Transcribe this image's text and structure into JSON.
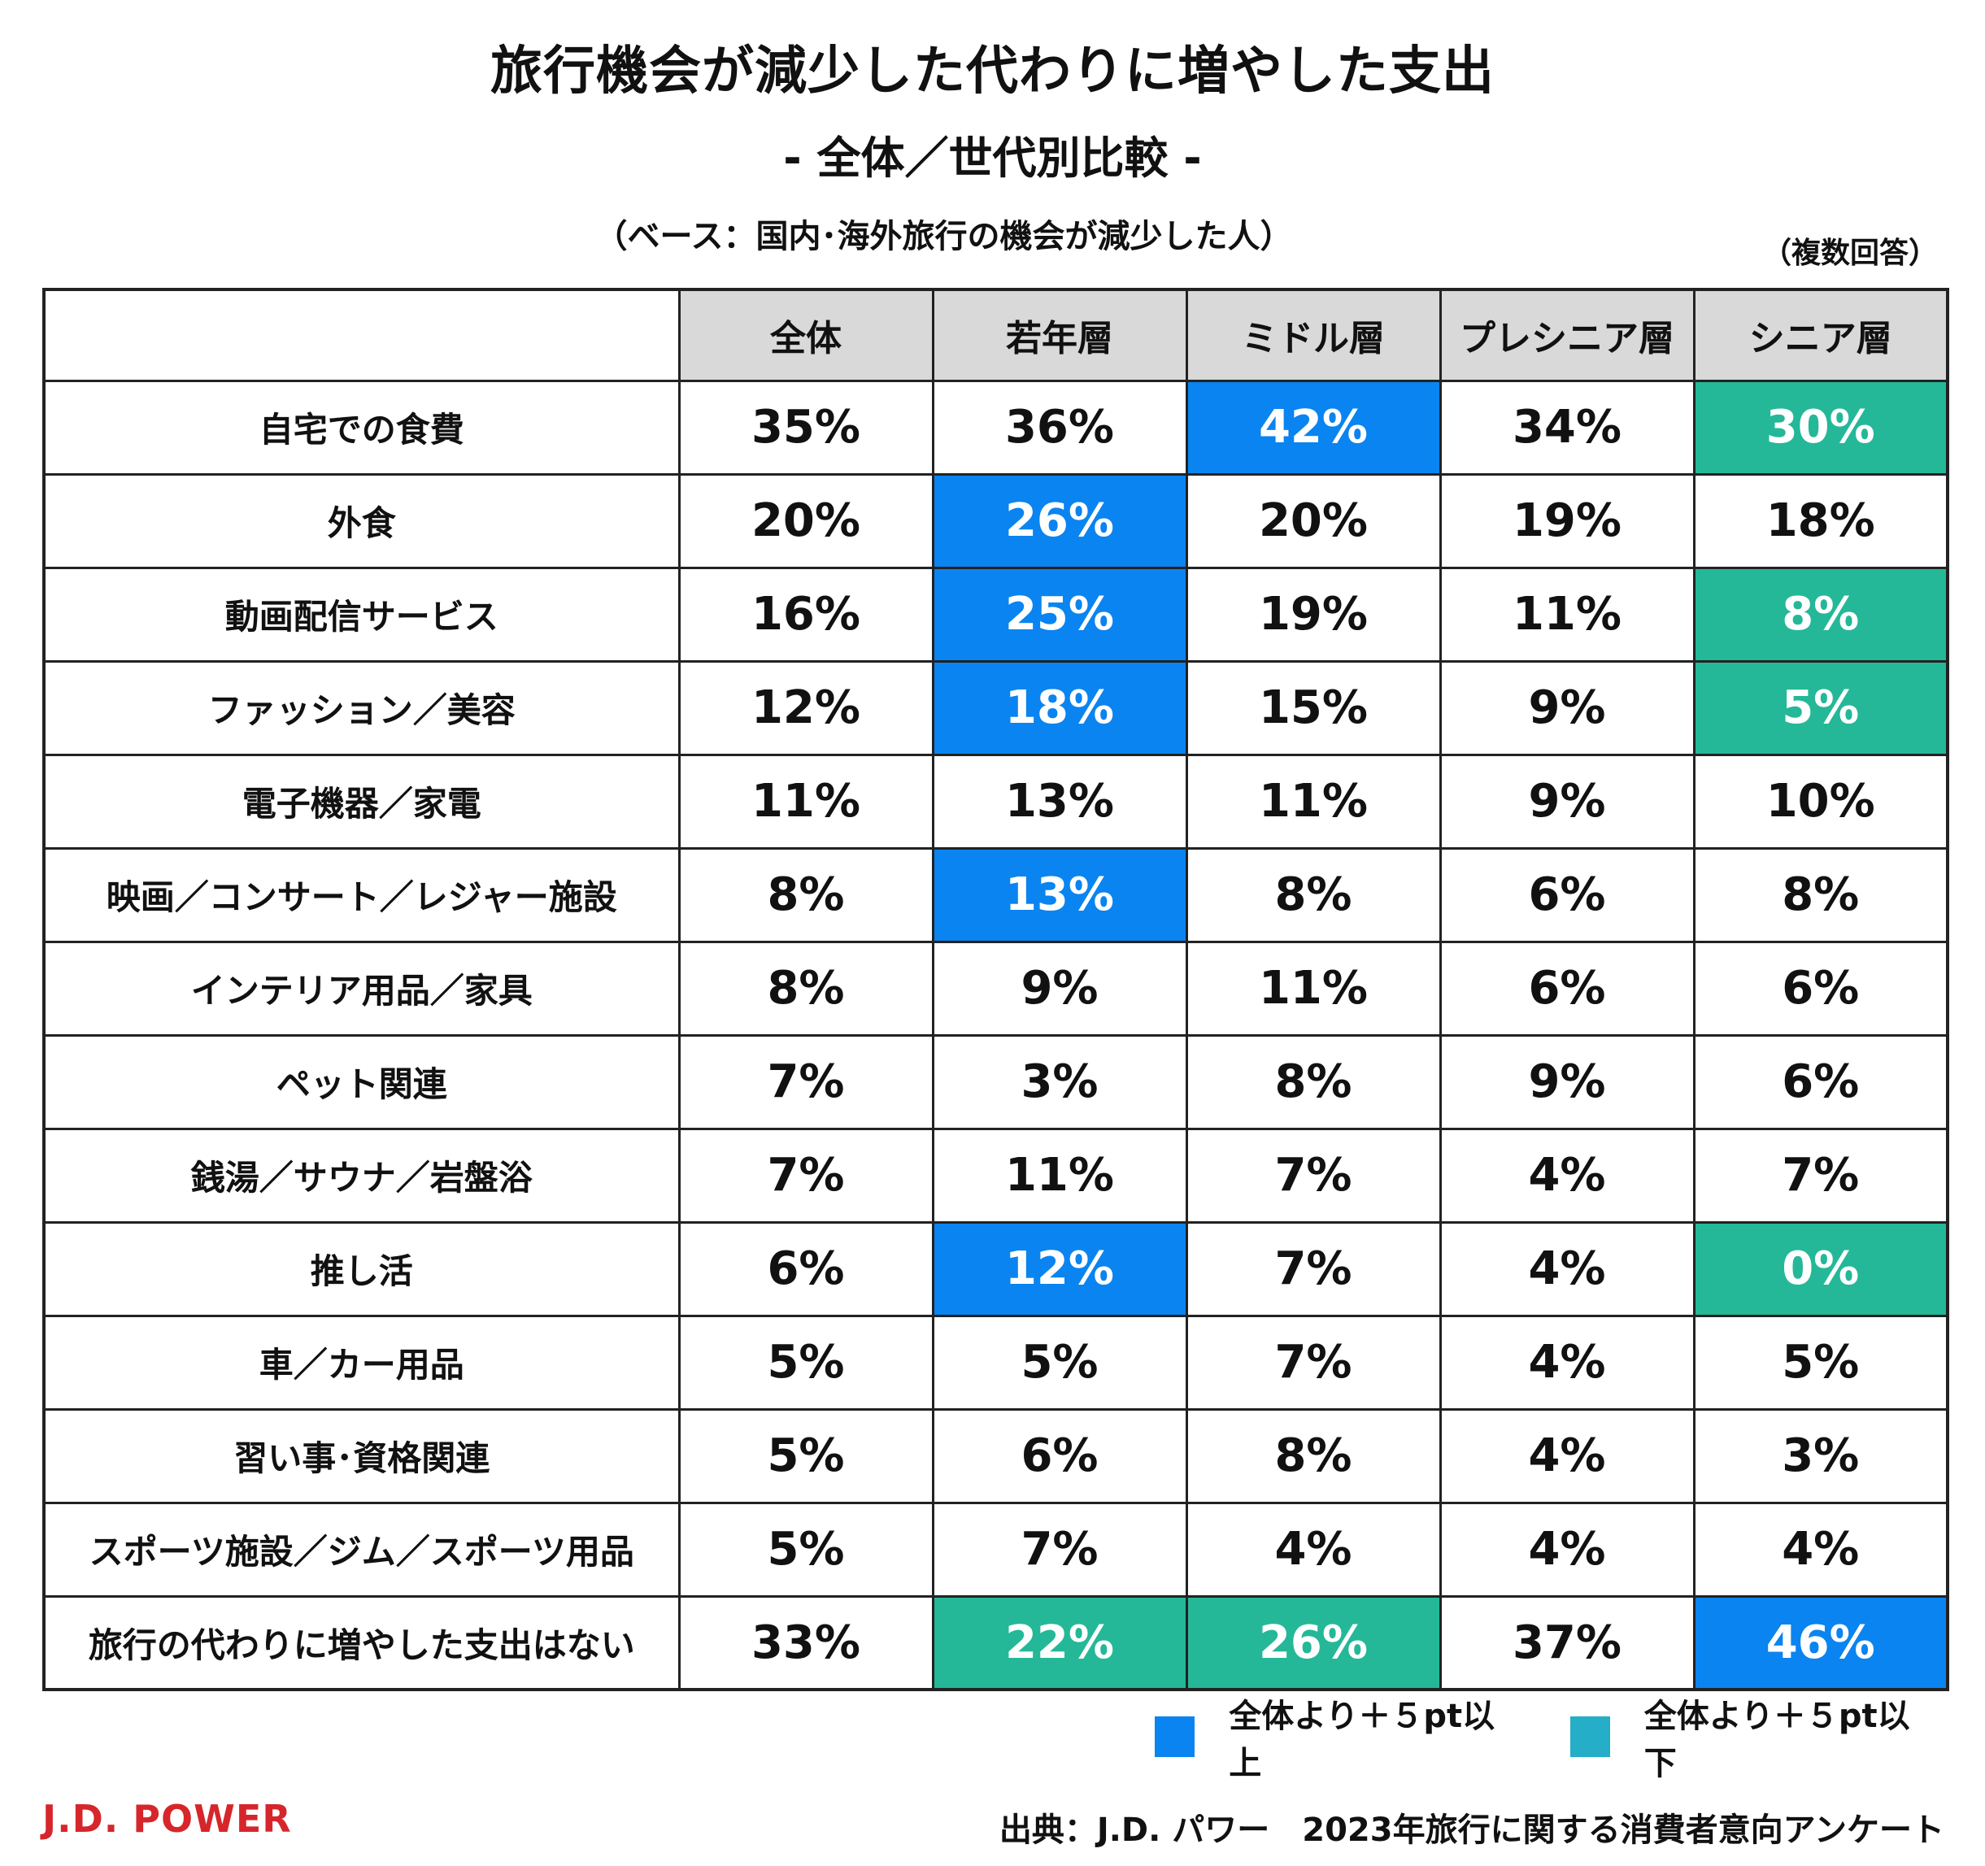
{
  "title": "旅行機会が減少した代わりに増やした支出",
  "subtitle": "- 全体／世代別比較 -",
  "base_note": "（ベース：国内･海外旅行の機会が減少した人）",
  "multi_answer_note": "（複数回答）",
  "colors": {
    "high": "#0a84f0",
    "low": "#24b898",
    "legend_low": "#24aec8",
    "header_bg": "#d9d9d9",
    "brand": "#d6262b"
  },
  "chart_data": {
    "type": "table",
    "title": "旅行機会が減少した代わりに増やした支出",
    "columns": [
      "全体",
      "若年層",
      "ミドル層",
      "プレシニア層",
      "シニア層"
    ],
    "rows": [
      {
        "label": "自宅での食費",
        "values": [
          "35%",
          "36%",
          "42%",
          "34%",
          "30%"
        ],
        "highlight": [
          "",
          "",
          "high",
          "",
          "low"
        ]
      },
      {
        "label": "外食",
        "values": [
          "20%",
          "26%",
          "20%",
          "19%",
          "18%"
        ],
        "highlight": [
          "",
          "high",
          "",
          "",
          ""
        ]
      },
      {
        "label": "動画配信サービス",
        "values": [
          "16%",
          "25%",
          "19%",
          "11%",
          "8%"
        ],
        "highlight": [
          "",
          "high",
          "",
          "",
          "low"
        ]
      },
      {
        "label": "ファッション／美容",
        "values": [
          "12%",
          "18%",
          "15%",
          "9%",
          "5%"
        ],
        "highlight": [
          "",
          "high",
          "",
          "",
          "low"
        ]
      },
      {
        "label": "電子機器／家電",
        "values": [
          "11%",
          "13%",
          "11%",
          "9%",
          "10%"
        ],
        "highlight": [
          "",
          "",
          "",
          "",
          ""
        ]
      },
      {
        "label": "映画／コンサート／レジャー施設",
        "values": [
          "8%",
          "13%",
          "8%",
          "6%",
          "8%"
        ],
        "highlight": [
          "",
          "high",
          "",
          "",
          ""
        ]
      },
      {
        "label": "インテリア用品／家具",
        "values": [
          "8%",
          "9%",
          "11%",
          "6%",
          "6%"
        ],
        "highlight": [
          "",
          "",
          "",
          "",
          ""
        ]
      },
      {
        "label": "ペット関連",
        "values": [
          "7%",
          "3%",
          "8%",
          "9%",
          "6%"
        ],
        "highlight": [
          "",
          "",
          "",
          "",
          ""
        ]
      },
      {
        "label": "銭湯／サウナ／岩盤浴",
        "values": [
          "7%",
          "11%",
          "7%",
          "4%",
          "7%"
        ],
        "highlight": [
          "",
          "",
          "",
          "",
          ""
        ]
      },
      {
        "label": "推し活",
        "values": [
          "6%",
          "12%",
          "7%",
          "4%",
          "0%"
        ],
        "highlight": [
          "",
          "high",
          "",
          "",
          "low"
        ]
      },
      {
        "label": "車／カー用品",
        "values": [
          "5%",
          "5%",
          "7%",
          "4%",
          "5%"
        ],
        "highlight": [
          "",
          "",
          "",
          "",
          ""
        ]
      },
      {
        "label": "習い事･資格関連",
        "values": [
          "5%",
          "6%",
          "8%",
          "4%",
          "3%"
        ],
        "highlight": [
          "",
          "",
          "",
          "",
          ""
        ]
      },
      {
        "label": "スポーツ施設／ジム／スポーツ用品",
        "values": [
          "5%",
          "7%",
          "4%",
          "4%",
          "4%"
        ],
        "highlight": [
          "",
          "",
          "",
          "",
          ""
        ]
      },
      {
        "label": "旅行の代わりに増やした支出はない",
        "values": [
          "33%",
          "22%",
          "26%",
          "37%",
          "46%"
        ],
        "highlight": [
          "",
          "low",
          "low",
          "",
          "high"
        ]
      }
    ]
  },
  "legend": {
    "high_label": "全体より＋５pt以上",
    "low_label": "全体より＋５pt以下"
  },
  "logo_text": "J.D. POWER",
  "source": "出典：J.D. パワー　2023年旅行に関する消費者意向アンケート"
}
